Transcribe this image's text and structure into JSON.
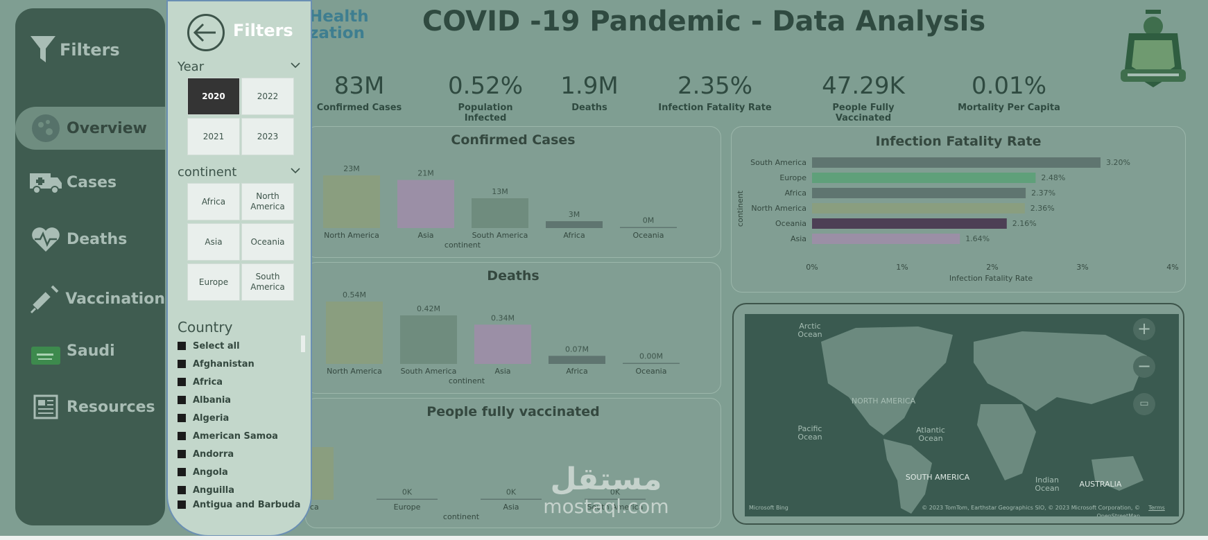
{
  "title": "COVID -19 Pandemic - Data Analysis",
  "logo_text": [
    "Health",
    "zation"
  ],
  "nav": {
    "header": "Filters",
    "items": [
      {
        "label": "Overview",
        "icon": "virus-icon"
      },
      {
        "label": "Cases",
        "icon": "ambulance-icon"
      },
      {
        "label": "Deaths",
        "icon": "heart-pulse-icon"
      },
      {
        "label": "Vaccination",
        "icon": "syringe-icon"
      },
      {
        "label": "Saudi",
        "icon": "saudi-flag-icon"
      },
      {
        "label": "Resources",
        "icon": "newspaper-icon"
      }
    ]
  },
  "kpis": [
    {
      "value": "83M",
      "label": "Confirmed Cases"
    },
    {
      "value": "0.52%",
      "label": "Population Infected"
    },
    {
      "value": "1.9M",
      "label": "Deaths"
    },
    {
      "value": "2.35%",
      "label": "Infection Fatality Rate"
    },
    {
      "value": "47.29K",
      "label": "People Fully Vaccinated"
    },
    {
      "value": "0.01%",
      "label": "Mortality Per Capita"
    }
  ],
  "filter": {
    "title": "Filters",
    "year_label": "Year",
    "years": [
      "2020",
      "2022",
      "2021",
      "2023"
    ],
    "selected_year": "2020",
    "continent_label": "continent",
    "continents": [
      "Africa",
      "North America",
      "Asia",
      "Oceania",
      "Europe",
      "South America"
    ],
    "country_label": "Country",
    "countries": [
      "Select all",
      "Afghanistan",
      "Africa",
      "Albania",
      "Algeria",
      "American Samoa",
      "Andorra",
      "Angola",
      "Anguilla",
      "Antigua and Barbuda"
    ]
  },
  "map": {
    "labels": [
      "Arctic Ocean",
      "NORTH AMERICA",
      "Pacific Ocean",
      "Atlantic Ocean",
      "SOUTH AMERICA",
      "Indian Ocean",
      "AUSTRALIA"
    ],
    "bing": "Microsoft Bing",
    "attribution": "© 2023 TomTom, Earthstar Geographics SIO, © 2023 Microsoft Corporation, © OpenStreetMap",
    "terms": "Terms"
  },
  "watermark": {
    "arabic": "مستقل",
    "latin": "mostaql.com"
  },
  "chart_data": [
    {
      "type": "bar",
      "title": "Confirmed Cases",
      "xlabel": "continent",
      "categories": [
        "North America",
        "Asia",
        "South America",
        "Africa",
        "Oceania"
      ],
      "values": [
        23,
        21,
        13,
        3,
        0
      ],
      "labels": [
        "23M",
        "21M",
        "13M",
        "3M",
        "0M"
      ],
      "colors": [
        "#8a9e7f",
        "#9b8fa6",
        "#6f8c7e",
        "#5f7570",
        "#5f7570"
      ],
      "ylim": [
        0,
        23
      ]
    },
    {
      "type": "bar",
      "title": "Deaths",
      "xlabel": "continent",
      "categories": [
        "North America",
        "South America",
        "Asia",
        "Africa",
        "Oceania"
      ],
      "values": [
        0.54,
        0.42,
        0.34,
        0.07,
        0.0
      ],
      "labels": [
        "0.54M",
        "0.42M",
        "0.34M",
        "0.07M",
        "0.00M"
      ],
      "colors": [
        "#8a9e7f",
        "#6f8c7e",
        "#9b8fa6",
        "#5f7570",
        "#5f7570"
      ],
      "ylim": [
        0,
        0.54
      ]
    },
    {
      "type": "bar",
      "title": "People fully vaccinated",
      "xlabel": "continent",
      "categories": [
        "America",
        "Europe",
        "Asia",
        "South America"
      ],
      "values": [
        47.29,
        0,
        0,
        0
      ],
      "labels": [
        "",
        "0K",
        "0K",
        "0K"
      ],
      "colors": [
        "#8a9e7f",
        "#5f7570",
        "#5f7570",
        "#5f7570"
      ],
      "ylim": [
        0,
        47.29
      ]
    },
    {
      "type": "bar",
      "orientation": "horizontal",
      "title": "Infection Fatality Rate",
      "xlabel": "Infection Fatality Rate",
      "ylabel": "continent",
      "categories": [
        "South America",
        "Europe",
        "Africa",
        "North America",
        "Oceania",
        "Asia"
      ],
      "values": [
        3.2,
        2.48,
        2.37,
        2.36,
        2.16,
        1.64
      ],
      "labels": [
        "3.20%",
        "2.48%",
        "2.37%",
        "2.36%",
        "2.16%",
        "1.64%"
      ],
      "colors": [
        "#5f7570",
        "#5fa07a",
        "#5f7570",
        "#8a9e7f",
        "#4d3f55",
        "#9b8fa6"
      ],
      "xticks": [
        "0%",
        "1%",
        "2%",
        "3%",
        "4%"
      ],
      "xlim": [
        0,
        4
      ]
    }
  ]
}
